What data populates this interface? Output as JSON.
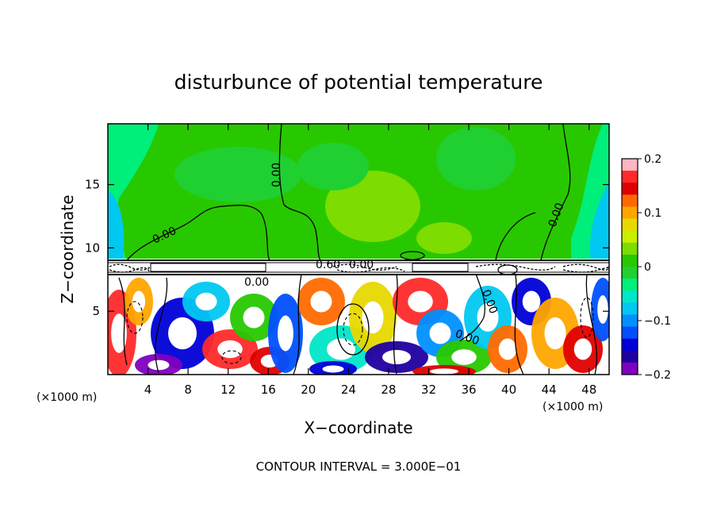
{
  "chart_data": {
    "type": "heatmap",
    "title": "disturbunce of potential temperature",
    "xlabel": "X−coordinate",
    "ylabel": "Z−coordinate",
    "x_unit_left": "(×1000 m)",
    "x_unit_right": "(×1000 m)",
    "x_ticks": [
      4,
      8,
      12,
      16,
      20,
      24,
      28,
      32,
      36,
      40,
      44,
      48
    ],
    "y_ticks": [
      5,
      10,
      15
    ],
    "xlim": [
      0,
      50
    ],
    "ylim": [
      0,
      19.8
    ],
    "colorbar": {
      "range": [
        -0.2,
        0.2
      ],
      "ticks": [
        "0.2",
        "0.1",
        "0",
        "−0.1",
        "−0.2"
      ],
      "colors": [
        "#ffb6c1",
        "#ff2a2a",
        "#e00000",
        "#ff6a00",
        "#ffa500",
        "#e8d800",
        "#c8ee00",
        "#7ddc00",
        "#28c800",
        "#20d030",
        "#00ee7a",
        "#00e6c8",
        "#00c8f0",
        "#0090ff",
        "#0050ff",
        "#0000d8",
        "#2000a0",
        "#8000c0"
      ]
    },
    "contour_labels": [
      "0.00",
      "0.00",
      "0.00",
      "0.60",
      "0.00",
      "0.00",
      "0.00",
      "0.00"
    ],
    "footer": "CONTOUR INTERVAL = 3.000E−01"
  }
}
